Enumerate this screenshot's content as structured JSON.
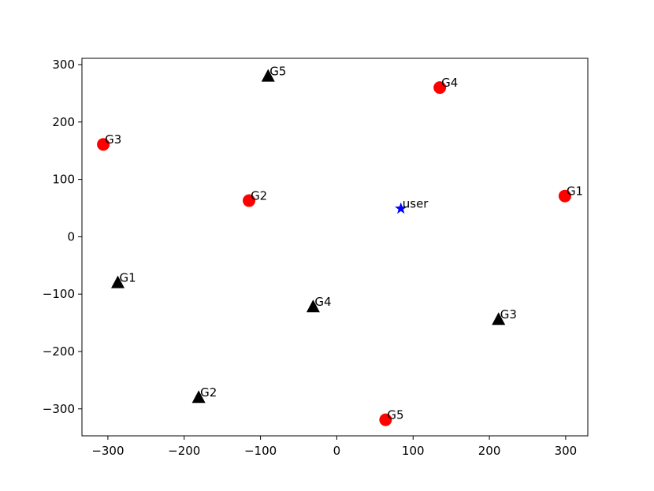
{
  "chart_data": {
    "type": "scatter",
    "xlim": [
      -334,
      329
    ],
    "ylim": [
      -347,
      311
    ],
    "xticks": [
      {
        "value": -300,
        "label": "−300"
      },
      {
        "value": -200,
        "label": "−200"
      },
      {
        "value": -100,
        "label": "−100"
      },
      0,
      100,
      200,
      300
    ],
    "yticks": [
      {
        "value": -300,
        "label": "−300"
      },
      {
        "value": -200,
        "label": "−200"
      },
      {
        "value": -100,
        "label": "−100"
      },
      0,
      100,
      200,
      300
    ],
    "series": [
      {
        "marker": "circle",
        "color": "#ff0000",
        "labels": [
          "G1",
          "G2",
          "G3",
          "G4",
          "G5"
        ],
        "x": [
          299,
          -115,
          -306,
          135,
          64
        ],
        "y": [
          71,
          63,
          161,
          260,
          -319
        ]
      },
      {
        "marker": "triangle",
        "color": "#000000",
        "labels": [
          "G1",
          "G2",
          "G3",
          "G4",
          "G5"
        ],
        "x": [
          -287,
          -181,
          212,
          -31,
          -90
        ],
        "y": [
          -80,
          -280,
          -144,
          -122,
          280
        ]
      },
      {
        "marker": "star",
        "color": "#0000ff",
        "labels": [
          "user"
        ],
        "x": [
          84
        ],
        "y": [
          49
        ]
      }
    ]
  }
}
